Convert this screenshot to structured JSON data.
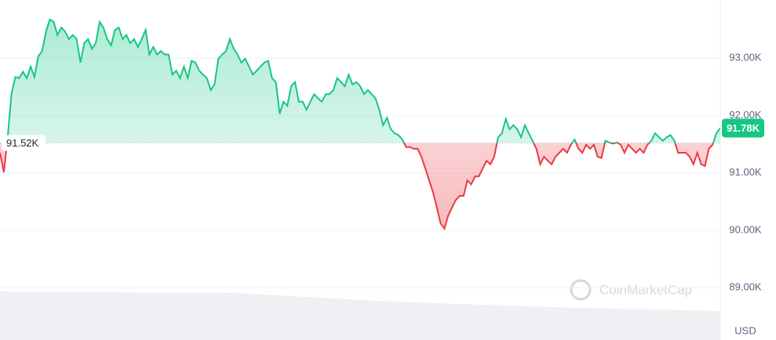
{
  "chart_data": {
    "type": "line",
    "values": [
      91350,
      91010,
      91620,
      92370,
      92670,
      92650,
      92760,
      92650,
      92850,
      92670,
      93030,
      93120,
      93460,
      93670,
      93630,
      93400,
      93530,
      93460,
      93330,
      93400,
      93330,
      92920,
      93260,
      93330,
      93160,
      93260,
      93630,
      93530,
      93330,
      93220,
      93490,
      93530,
      93330,
      93400,
      93260,
      93330,
      93190,
      93330,
      93490,
      93060,
      93190,
      93060,
      93120,
      93060,
      93060,
      92710,
      92780,
      92650,
      92850,
      92650,
      92950,
      92920,
      92780,
      92710,
      92650,
      92440,
      92540,
      92990,
      93060,
      93120,
      93330,
      93160,
      93060,
      92920,
      92990,
      92850,
      92710,
      92780,
      92850,
      92920,
      92950,
      92650,
      92580,
      92030,
      92240,
      92170,
      92510,
      92580,
      92240,
      92240,
      92100,
      92240,
      92370,
      92300,
      92240,
      92370,
      92370,
      92440,
      92650,
      92580,
      92510,
      92710,
      92540,
      92580,
      92510,
      92370,
      92440,
      92370,
      92300,
      92100,
      91830,
      91960,
      91760,
      91690,
      91660,
      91580,
      91450,
      91450,
      91420,
      91420,
      91280,
      91080,
      90870,
      90670,
      90400,
      90120,
      90030,
      90260,
      90400,
      90530,
      90600,
      90600,
      90870,
      90800,
      90940,
      90940,
      91080,
      91210,
      91150,
      91280,
      91620,
      91690,
      91940,
      91760,
      91830,
      91760,
      91620,
      91830,
      91690,
      91560,
      91420,
      91150,
      91280,
      91210,
      91150,
      91280,
      91350,
      91420,
      91350,
      91490,
      91580,
      91420,
      91350,
      91490,
      91420,
      91490,
      91280,
      91260,
      91560,
      91530,
      91510,
      91530,
      91490,
      91350,
      91490,
      91420,
      91350,
      91420,
      91350,
      91490,
      91560,
      91690,
      91620,
      91560,
      91620,
      91660,
      91560,
      91350,
      91350,
      91350,
      91280,
      91150,
      91350,
      91150,
      91120,
      91420,
      91490,
      91690,
      91780
    ],
    "last_value_label": "91.78K",
    "baseline": {
      "value": 91520,
      "label": "91.52K"
    },
    "up_color": "#16c784",
    "down_color": "#ea3943",
    "ylim": [
      88090,
      94010
    ],
    "yticks": [
      {
        "value": 89000,
        "label": "89.00K"
      },
      {
        "value": 90000,
        "label": "90.00K"
      },
      {
        "value": 91000,
        "label": "91.00K"
      },
      {
        "value": 92000,
        "label": "92.00K"
      },
      {
        "value": 93000,
        "label": "93.00K"
      }
    ],
    "grid": true,
    "unit_label": "USD",
    "watermark": "CoinMarketCap"
  }
}
